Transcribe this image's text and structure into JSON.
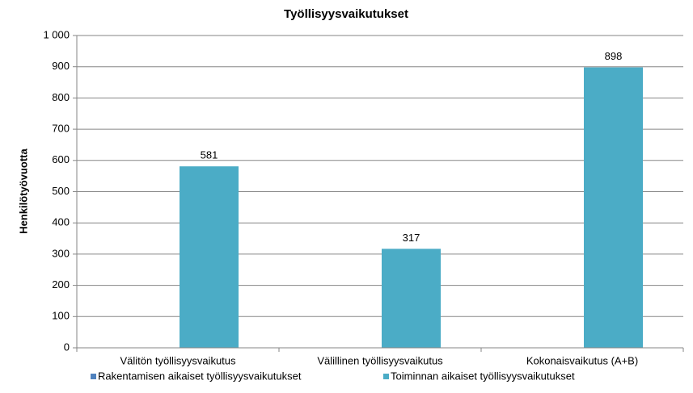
{
  "chart_data": {
    "type": "bar",
    "title": "Työllisyysvaikutukset",
    "y_label": "Henkilötyövuotta",
    "categories": [
      "Välitön työllisyysvaikutus",
      "Välillinen työllisyysvaikutus",
      "Kokonaisvaikutus (A+B)"
    ],
    "series": [
      {
        "name": "Rakentamisen aikaiset työllisyysvaikutukset",
        "color": "#4f81bd",
        "values": [
          null,
          null,
          null
        ]
      },
      {
        "name": "Toiminnan aikaiset työllisyysvaikutukset",
        "color": "#4bacc6",
        "values": [
          581,
          317,
          898
        ]
      }
    ],
    "ylim": [
      0,
      1000
    ],
    "yticks": [
      0,
      100,
      200,
      300,
      400,
      500,
      600,
      700,
      800,
      900,
      {
        "value": 1000,
        "label": "1 000"
      }
    ],
    "grid": true,
    "legend": "bottom"
  }
}
